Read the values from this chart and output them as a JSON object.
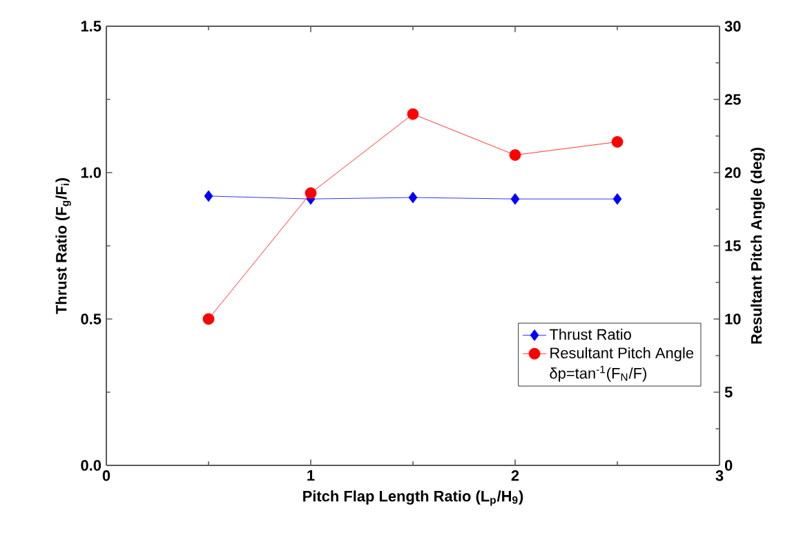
{
  "chart_data": {
    "type": "line",
    "xlabel": "Pitch Flap Length Ratio (L$_{p}$/H$_{9}$)",
    "ylabel": "Thrust Ratio (F$_{g}$/F$_{i}$)",
    "y2label": "Resultant Pitch Angle (deg)",
    "x": [
      0.5,
      1,
      1.5,
      2,
      2.5
    ],
    "series": [
      {
        "name": "Thrust Ratio",
        "color": "#0000ff",
        "marker": "diamond",
        "values": [
          0.92,
          0.91,
          0.915,
          0.91,
          0.91
        ]
      },
      {
        "name": "Resultant Pitch Angle",
        "color": "#ff0000",
        "marker": "circle",
        "axis": "y2",
        "values": [
          10.0,
          18.6,
          24.0,
          21.2,
          22.1
        ]
      }
    ],
    "annotations": [
      "δp=tan$^{-1}$(F$_{N}$/F)"
    ],
    "xlim": [
      0,
      3
    ],
    "xticks": [
      0,
      1,
      2,
      3
    ],
    "ylim": [
      0,
      1.5
    ],
    "yticks": [
      {
        "value": 0,
        "label": "0.0"
      },
      0.5,
      {
        "value": 1,
        "label": "1.0"
      },
      1.5
    ],
    "y2lim": [
      0,
      30
    ],
    "y2ticks": [
      0,
      5,
      10,
      15,
      20,
      25,
      30
    ],
    "legend": "bottom right",
    "grid": false
  }
}
